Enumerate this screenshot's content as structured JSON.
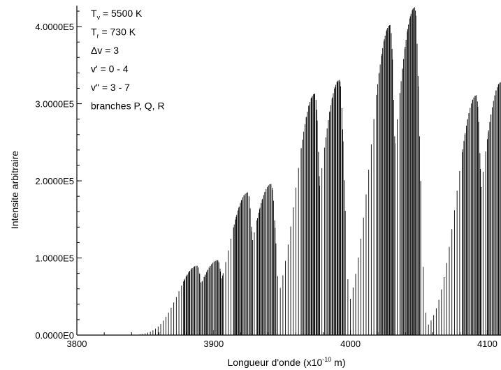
{
  "chart_data": {
    "type": "line",
    "xlabel": "Longueur d'onde (x10",
    "xlabel_exp": "-10",
    "xlabel_unit": " m)",
    "ylabel": "Intensite arbitraire",
    "xlim": [
      3800,
      4110
    ],
    "ylim": [
      0,
      420000
    ],
    "x_ticks": [
      3800,
      3900,
      4000,
      4100
    ],
    "x_tick_labels": [
      "3800",
      "3900",
      "4000",
      "4100"
    ],
    "y_ticks": [
      0,
      100000,
      200000,
      300000,
      400000
    ],
    "y_tick_labels": [
      "0.0000E0",
      "1.0000E5",
      "2.0000E5",
      "3.0000E5",
      "4.0000E5"
    ],
    "grid": false,
    "annotations": [
      {
        "main": "T",
        "sub": "v",
        "rest": " = 5500 K"
      },
      {
        "main": "T",
        "sub": "r",
        "rest": " =  730 K"
      },
      {
        "main": "Δv = 3",
        "sub": "",
        "rest": ""
      },
      {
        "main": "v' = 0 - 4",
        "sub": "",
        "rest": ""
      },
      {
        "main": "v\" = 3 - 7",
        "sub": "",
        "rest": ""
      },
      {
        "main": "branches P, Q, R",
        "sub": "",
        "rest": ""
      }
    ],
    "series": [
      {
        "peaks": [
          {
            "x": 3888,
            "y": 90000
          },
          {
            "x": 3903,
            "y": 97000
          },
          {
            "x": 3925,
            "y": 185000
          },
          {
            "x": 3942,
            "y": 196000
          },
          {
            "x": 3974,
            "y": 313000
          },
          {
            "x": 3992,
            "y": 331000
          },
          {
            "x": 4029,
            "y": 402000
          },
          {
            "x": 4047,
            "y": 425000
          },
          {
            "x": 4092,
            "y": 311000
          },
          {
            "x": 4110,
            "y": 328000
          }
        ]
      }
    ]
  }
}
